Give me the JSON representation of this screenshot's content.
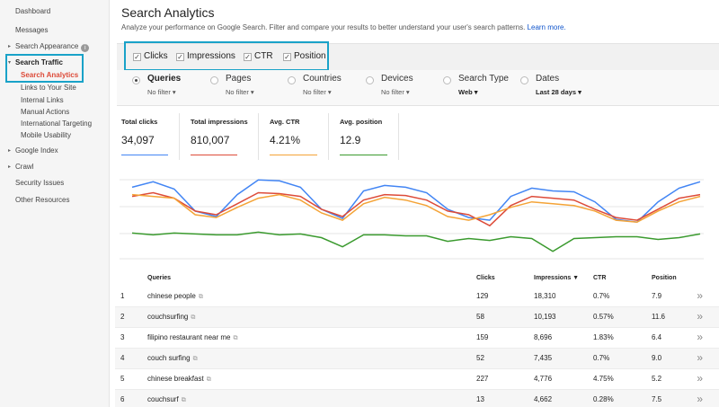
{
  "sidebar": {
    "dashboard": "Dashboard",
    "messages": "Messages",
    "search_appearance": "Search Appearance",
    "search_traffic": "Search Traffic",
    "search_traffic_items": [
      "Search Analytics",
      "Links to Your Site",
      "Internal Links",
      "Manual Actions",
      "International Targeting",
      "Mobile Usability"
    ],
    "google_index": "Google Index",
    "crawl": "Crawl",
    "security_issues": "Security Issues",
    "other_resources": "Other Resources"
  },
  "header": {
    "title": "Search Analytics",
    "subtitle": "Analyze your performance on Google Search. Filter and compare your results to better understand your user's search patterns.",
    "learn_more": "Learn more."
  },
  "metrics": [
    {
      "label": "Clicks",
      "checked": true
    },
    {
      "label": "Impressions",
      "checked": true
    },
    {
      "label": "CTR",
      "checked": true
    },
    {
      "label": "Position",
      "checked": true
    }
  ],
  "filters": [
    {
      "label": "Queries",
      "value": "No filter",
      "selected": true
    },
    {
      "label": "Pages",
      "value": "No filter",
      "selected": false
    },
    {
      "label": "Countries",
      "value": "No filter",
      "selected": false
    },
    {
      "label": "Devices",
      "value": "No filter",
      "selected": false
    },
    {
      "label": "Search Type",
      "value": "Web",
      "selected": false
    },
    {
      "label": "Dates",
      "value": "Last 28 days",
      "selected": false
    }
  ],
  "totals": [
    {
      "label": "Total clicks",
      "value": "34,097",
      "color": "#4285f4"
    },
    {
      "label": "Total impressions",
      "value": "810,007",
      "color": "#dd4b39"
    },
    {
      "label": "Avg. CTR",
      "value": "4.21%",
      "color": "#f4a336"
    },
    {
      "label": "Avg. position",
      "value": "12.9",
      "color": "#3a9a2e"
    }
  ],
  "chart_data": {
    "type": "line",
    "x": [
      1,
      2,
      3,
      4,
      5,
      6,
      7,
      8,
      9,
      10,
      11,
      12,
      13,
      14,
      15,
      16,
      17,
      18,
      19,
      20,
      21,
      22,
      23,
      24,
      25,
      26,
      27,
      28
    ],
    "series": [
      {
        "name": "Clicks",
        "color": "#4285f4",
        "values": [
          0.8,
          0.86,
          0.78,
          0.54,
          0.48,
          0.72,
          0.88,
          0.87,
          0.8,
          0.56,
          0.46,
          0.76,
          0.82,
          0.8,
          0.74,
          0.56,
          0.47,
          0.44,
          0.7,
          0.79,
          0.76,
          0.75,
          0.64,
          0.45,
          0.42,
          0.64,
          0.79,
          0.86
        ]
      },
      {
        "name": "Impressions",
        "color": "#dd4b39",
        "values": [
          0.7,
          0.74,
          0.68,
          0.54,
          0.5,
          0.62,
          0.74,
          0.73,
          0.7,
          0.56,
          0.48,
          0.66,
          0.72,
          0.71,
          0.66,
          0.54,
          0.5,
          0.38,
          0.6,
          0.7,
          0.68,
          0.66,
          0.56,
          0.47,
          0.44,
          0.56,
          0.68,
          0.72
        ]
      },
      {
        "name": "CTR",
        "color": "#f4a336",
        "values": [
          0.72,
          0.7,
          0.68,
          0.5,
          0.47,
          0.58,
          0.68,
          0.72,
          0.66,
          0.52,
          0.44,
          0.62,
          0.69,
          0.66,
          0.6,
          0.48,
          0.44,
          0.5,
          0.58,
          0.64,
          0.62,
          0.6,
          0.54,
          0.44,
          0.42,
          0.54,
          0.64,
          0.7
        ]
      },
      {
        "name": "Position",
        "color": "#3a9a2e",
        "values": [
          0.3,
          0.28,
          0.3,
          0.29,
          0.28,
          0.28,
          0.31,
          0.28,
          0.29,
          0.25,
          0.15,
          0.28,
          0.28,
          0.27,
          0.27,
          0.21,
          0.24,
          0.22,
          0.26,
          0.24,
          0.1,
          0.24,
          0.25,
          0.26,
          0.26,
          0.23,
          0.25,
          0.29
        ]
      }
    ],
    "grid": true
  },
  "table": {
    "headers": {
      "queries": "Queries",
      "clicks": "Clicks",
      "impressions": "Impressions ▼",
      "ctr": "CTR",
      "position": "Position"
    },
    "rows": [
      {
        "n": "1",
        "query": "chinese people",
        "clicks": "129",
        "impressions": "18,310",
        "ctr": "0.7%",
        "position": "7.9"
      },
      {
        "n": "2",
        "query": "couchsurfing",
        "clicks": "58",
        "impressions": "10,193",
        "ctr": "0.57%",
        "position": "11.6"
      },
      {
        "n": "3",
        "query": "filipino restaurant near me",
        "clicks": "159",
        "impressions": "8,696",
        "ctr": "1.83%",
        "position": "6.4"
      },
      {
        "n": "4",
        "query": "couch surfing",
        "clicks": "52",
        "impressions": "7,435",
        "ctr": "0.7%",
        "position": "9.0"
      },
      {
        "n": "5",
        "query": "chinese breakfast",
        "clicks": "227",
        "impressions": "4,776",
        "ctr": "4.75%",
        "position": "5.2"
      },
      {
        "n": "6",
        "query": "couchsurf",
        "clicks": "13",
        "impressions": "4,662",
        "ctr": "0.28%",
        "position": "7.5"
      }
    ]
  }
}
